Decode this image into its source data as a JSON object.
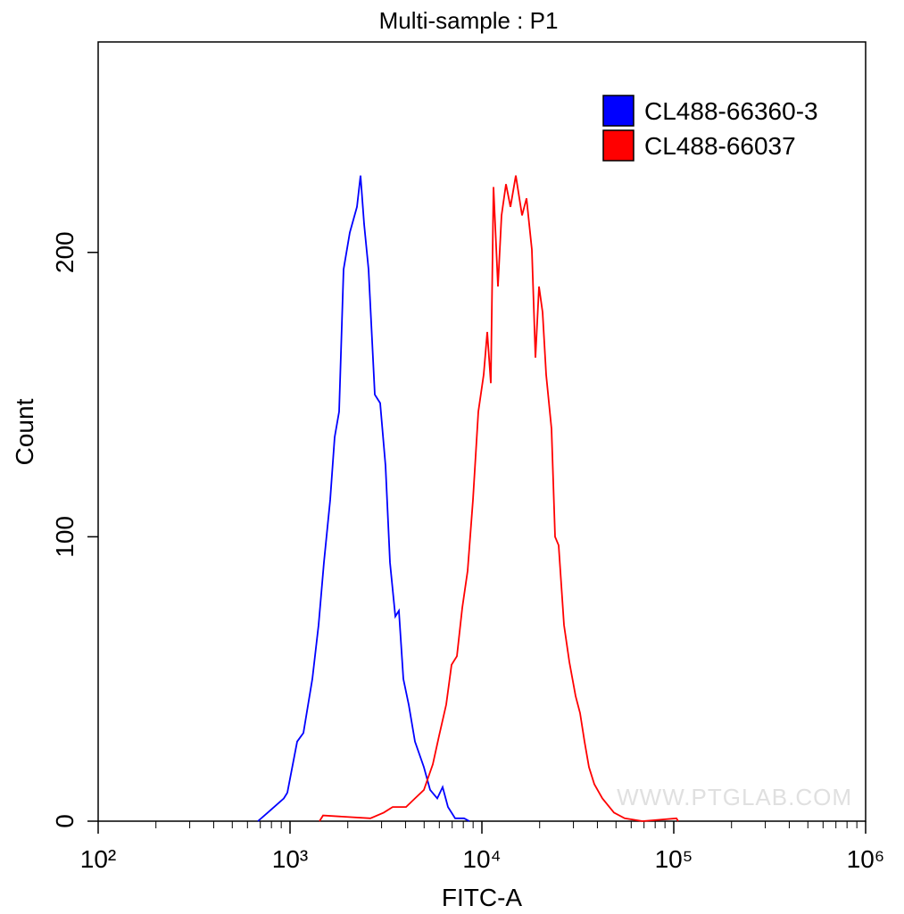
{
  "chart_data": {
    "type": "line",
    "title": "Multi-sample : P1",
    "x_label": "FITC-A",
    "y_label": "Count",
    "log_x": true,
    "xlim": [
      100,
      1000000
    ],
    "xticks": [
      {
        "value": 100,
        "label": "10²"
      },
      {
        "value": 1000,
        "label": "10³"
      },
      {
        "value": 10000,
        "label": "10⁴"
      },
      {
        "value": 100000,
        "label": "10⁵"
      },
      {
        "value": 1000000,
        "label": "10⁶"
      }
    ],
    "ylim": [
      0,
      274
    ],
    "yticks": [
      0,
      100,
      200
    ],
    "legend_position": "upper right",
    "annotation": "WWW.PTGLAB.COM",
    "series": [
      {
        "name": "CL488-66360-3",
        "color": "#0000ff",
        "x": [
          680,
          765,
          928,
          968,
          1090,
          1174,
          1307,
          1409,
          1502,
          1620,
          1708,
          1803,
          1902,
          2049,
          2233,
          2331,
          2432,
          2566,
          2767,
          2950,
          3147,
          3319,
          3540,
          3694,
          3897,
          4156,
          4481,
          4987,
          5374,
          5855,
          6245,
          6660,
          7255,
          8072,
          8610
        ],
        "values": [
          0,
          3,
          8,
          10,
          28,
          31,
          50,
          69,
          91,
          113,
          135,
          144,
          194,
          207,
          216,
          227,
          210,
          194,
          150,
          147,
          125,
          91,
          72,
          74,
          50,
          41,
          28,
          19,
          11,
          8,
          12,
          5,
          1,
          1,
          0
        ]
      },
      {
        "name": "CL488-66037",
        "color": "#ff0000",
        "x": [
          1424,
          1487,
          2622,
          3079,
          3427,
          4024,
          4481,
          4987,
          5549,
          5980,
          6516,
          6950,
          7411,
          7903,
          8425,
          8984,
          9580,
          10216,
          10664,
          11132,
          11495,
          12124,
          12660,
          13359,
          14090,
          15024,
          16194,
          17085,
          18217,
          19013,
          19848,
          20717,
          21630,
          23060,
          24071,
          25119,
          26785,
          28562,
          30800,
          32490,
          34270,
          36150,
          38550,
          42460,
          48800,
          55490,
          68750,
          103270,
          105500
        ],
        "values": [
          0,
          2,
          1,
          3,
          5,
          5,
          8,
          11,
          20,
          30,
          41,
          55,
          58,
          75,
          88,
          113,
          144,
          157,
          172,
          154,
          223,
          188,
          213,
          224,
          216,
          227,
          213,
          219,
          201,
          163,
          188,
          179,
          157,
          138,
          100,
          97,
          69,
          56,
          44,
          38,
          28,
          19,
          13,
          8,
          3,
          1,
          0,
          1,
          0
        ]
      }
    ]
  }
}
